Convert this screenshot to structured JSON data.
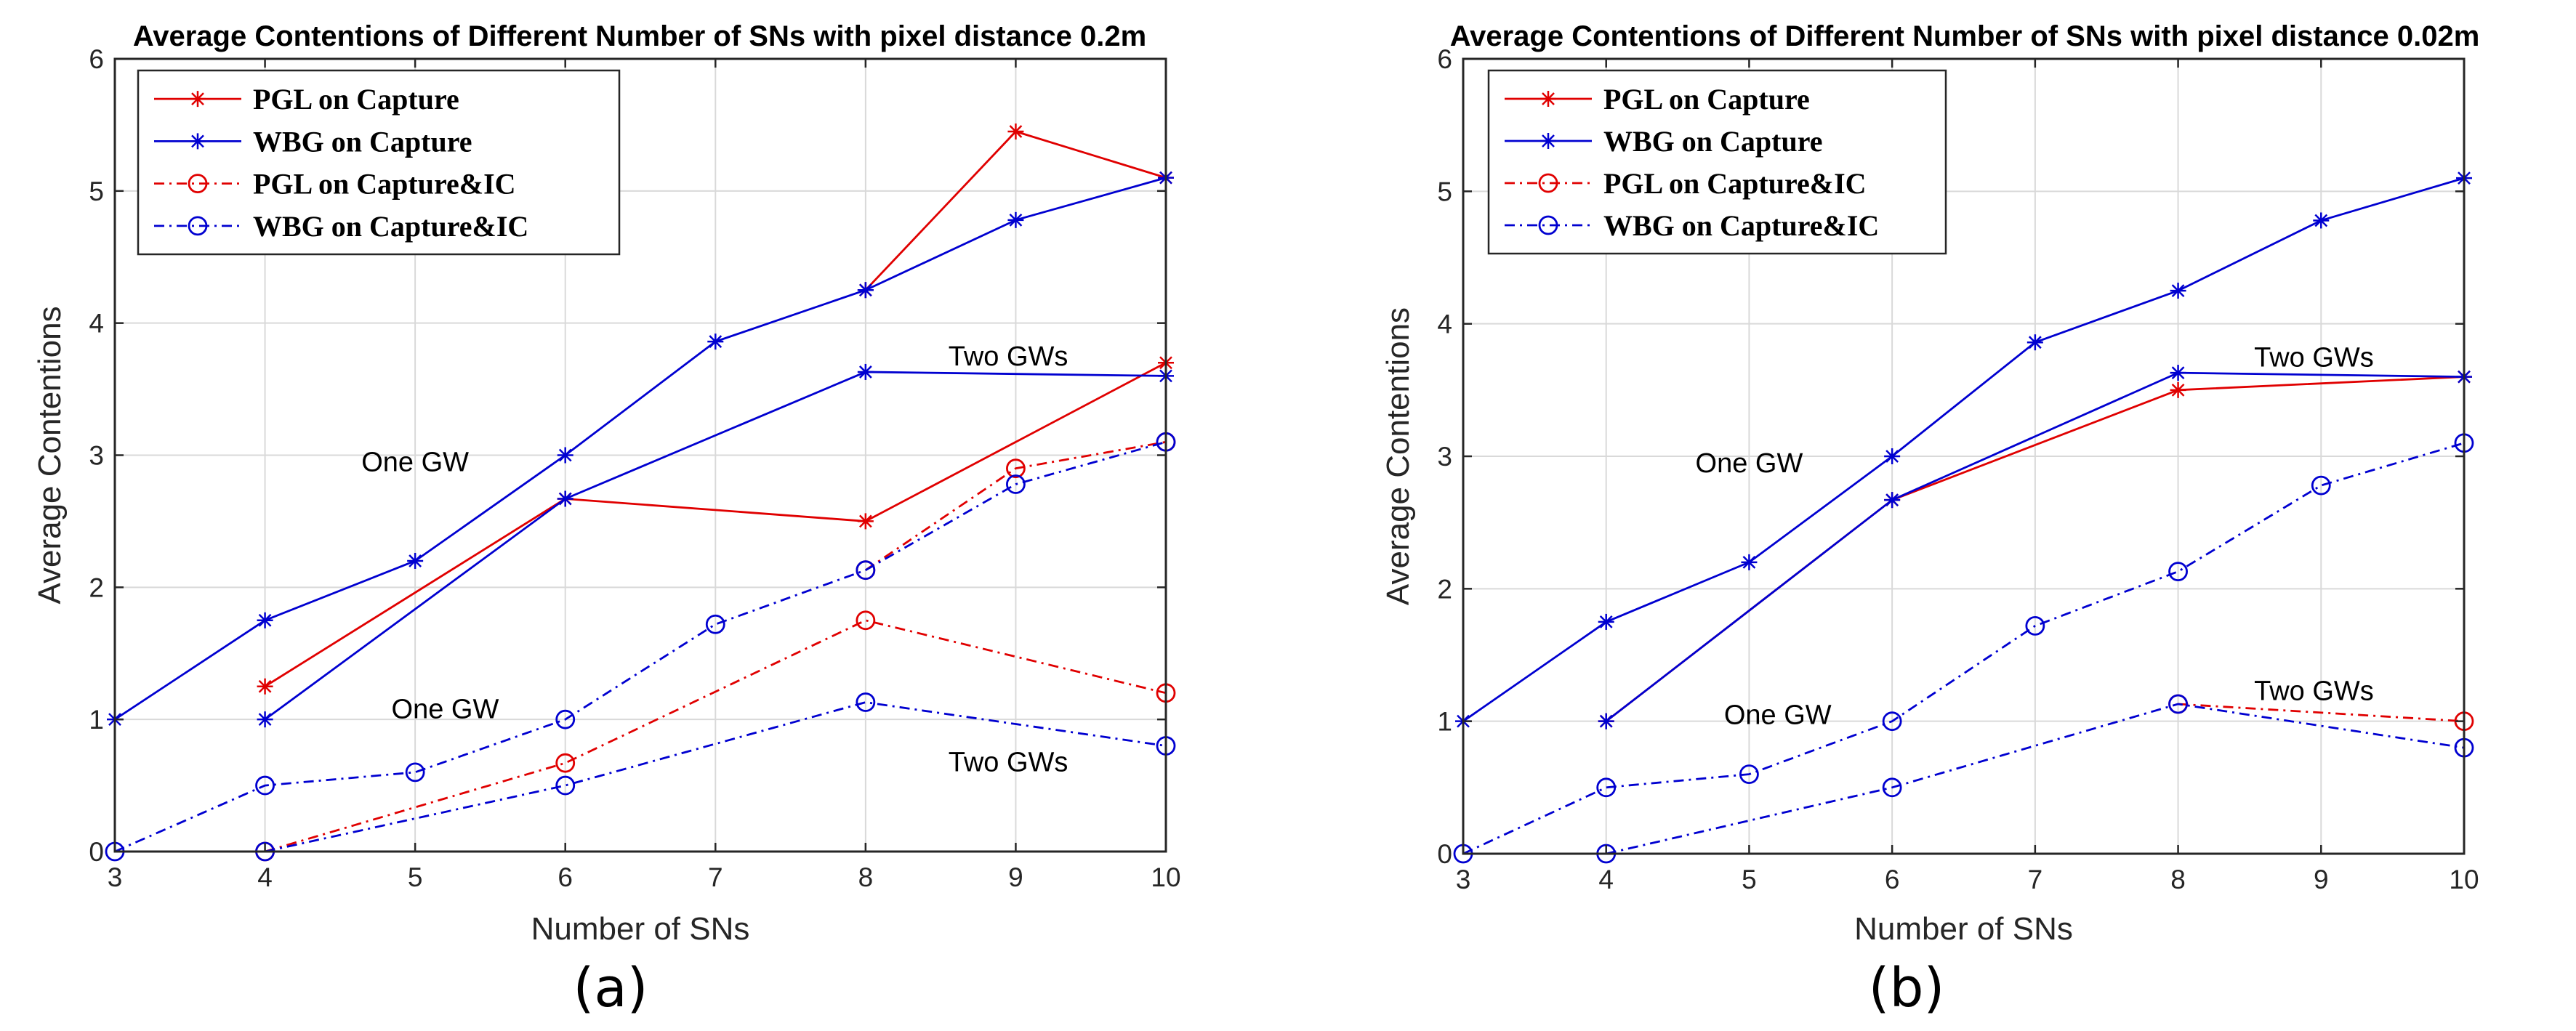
{
  "chart_data": [
    {
      "type": "line",
      "panel_label": "(a)",
      "title": "Average Contentions of Different Number of SNs with pixel distance 0.2m",
      "xlabel": "Number of SNs",
      "ylabel": "Average Contentions",
      "xlim": [
        3,
        10
      ],
      "ylim": [
        0,
        6
      ],
      "xticks": [
        3,
        4,
        5,
        6,
        7,
        8,
        9,
        10
      ],
      "yticks": [
        0,
        1,
        2,
        3,
        4,
        5,
        6
      ],
      "grid": true,
      "legend_position": "top-left",
      "legend": [
        {
          "label": "PGL on Capture",
          "color": "#e00000",
          "marker": "asterisk",
          "dash": "solid"
        },
        {
          "label": "WBG on Capture",
          "color": "#0000d0",
          "marker": "asterisk",
          "dash": "solid"
        },
        {
          "label": "PGL on Capture&IC",
          "color": "#e00000",
          "marker": "circle",
          "dash": "dashdot"
        },
        {
          "label": "WBG on Capture&IC",
          "color": "#0000d0",
          "marker": "circle",
          "dash": "dashdot"
        }
      ],
      "series": [
        {
          "name": "PGL on Capture",
          "group": "One GW",
          "color": "#e00000",
          "marker": "asterisk",
          "dash": "solid",
          "x": [
            8,
            9,
            10
          ],
          "y": [
            4.25,
            5.45,
            5.1
          ]
        },
        {
          "name": "WBG on Capture",
          "group": "One GW",
          "color": "#0000d0",
          "marker": "asterisk",
          "dash": "solid",
          "x": [
            3,
            4,
            5,
            6,
            7,
            8,
            9,
            10
          ],
          "y": [
            1.0,
            1.75,
            2.2,
            3.0,
            3.86,
            4.25,
            4.78,
            5.1
          ]
        },
        {
          "name": "PGL on Capture",
          "group": "Two GWs",
          "color": "#e00000",
          "marker": "asterisk",
          "dash": "solid",
          "x": [
            4,
            6,
            8,
            10
          ],
          "y": [
            1.25,
            2.67,
            2.5,
            3.7
          ]
        },
        {
          "name": "WBG on Capture",
          "group": "Two GWs",
          "color": "#0000d0",
          "marker": "asterisk",
          "dash": "solid",
          "x": [
            4,
            6,
            8,
            10
          ],
          "y": [
            1.0,
            2.67,
            3.63,
            3.6
          ]
        },
        {
          "name": "PGL on Capture&IC",
          "group": "One GW",
          "color": "#e00000",
          "marker": "circle",
          "dash": "dashdot",
          "x": [
            8,
            9,
            10
          ],
          "y": [
            2.13,
            2.9,
            3.1
          ]
        },
        {
          "name": "WBG on Capture&IC",
          "group": "One GW",
          "color": "#0000d0",
          "marker": "circle",
          "dash": "dashdot",
          "x": [
            3,
            4,
            5,
            6,
            7,
            8,
            9,
            10
          ],
          "y": [
            0.0,
            0.5,
            0.6,
            1.0,
            1.72,
            2.13,
            2.78,
            3.1
          ]
        },
        {
          "name": "PGL on Capture&IC",
          "group": "Two GWs",
          "color": "#e00000",
          "marker": "circle",
          "dash": "dashdot",
          "x": [
            4,
            6,
            8,
            10
          ],
          "y": [
            0.0,
            0.67,
            1.75,
            1.2
          ]
        },
        {
          "name": "WBG on Capture&IC",
          "group": "Two GWs",
          "color": "#0000d0",
          "marker": "circle",
          "dash": "dashdot",
          "x": [
            4,
            6,
            8,
            10
          ],
          "y": [
            0.0,
            0.5,
            1.13,
            0.8
          ]
        }
      ],
      "annotations": [
        {
          "text": "One GW",
          "x": 5.0,
          "y": 2.95
        },
        {
          "text": "Two GWs",
          "x": 8.95,
          "y": 3.75
        },
        {
          "text": "One GW",
          "x": 5.2,
          "y": 1.08
        },
        {
          "text": "Two GWs",
          "x": 8.95,
          "y": 0.68
        }
      ]
    },
    {
      "type": "line",
      "panel_label": "(b)",
      "title": "Average Contentions of Different Number of SNs with pixel distance 0.02m",
      "xlabel": "Number of SNs",
      "ylabel": "Average Contentions",
      "xlim": [
        3,
        10
      ],
      "ylim": [
        0,
        6
      ],
      "xticks": [
        3,
        4,
        5,
        6,
        7,
        8,
        9,
        10
      ],
      "yticks": [
        0,
        1,
        2,
        3,
        4,
        5,
        6
      ],
      "grid": true,
      "legend_position": "top-left",
      "legend": [
        {
          "label": "PGL on Capture",
          "color": "#e00000",
          "marker": "asterisk",
          "dash": "solid"
        },
        {
          "label": "WBG on Capture",
          "color": "#0000d0",
          "marker": "asterisk",
          "dash": "solid"
        },
        {
          "label": "PGL on Capture&IC",
          "color": "#e00000",
          "marker": "circle",
          "dash": "dashdot"
        },
        {
          "label": "WBG on Capture&IC",
          "color": "#0000d0",
          "marker": "circle",
          "dash": "dashdot"
        }
      ],
      "series": [
        {
          "name": "WBG on Capture",
          "group": "One GW",
          "color": "#0000d0",
          "marker": "asterisk",
          "dash": "solid",
          "x": [
            3,
            4,
            5,
            6,
            7,
            8,
            9,
            10
          ],
          "y": [
            1.0,
            1.75,
            2.2,
            3.0,
            3.86,
            4.25,
            4.78,
            5.1
          ]
        },
        {
          "name": "PGL on Capture",
          "group": "Two GWs",
          "color": "#e00000",
          "marker": "asterisk",
          "dash": "solid",
          "x": [
            4,
            6,
            8,
            10
          ],
          "y": [
            1.0,
            2.67,
            3.5,
            3.6
          ]
        },
        {
          "name": "WBG on Capture",
          "group": "Two GWs",
          "color": "#0000d0",
          "marker": "asterisk",
          "dash": "solid",
          "x": [
            4,
            6,
            8,
            10
          ],
          "y": [
            1.0,
            2.67,
            3.63,
            3.6
          ]
        },
        {
          "name": "WBG on Capture&IC",
          "group": "One GW",
          "color": "#0000d0",
          "marker": "circle",
          "dash": "dashdot",
          "x": [
            3,
            4,
            5,
            6,
            7,
            8,
            9,
            10
          ],
          "y": [
            0.0,
            0.5,
            0.6,
            1.0,
            1.72,
            2.13,
            2.78,
            3.1
          ]
        },
        {
          "name": "PGL on Capture&IC",
          "group": "Two GWs",
          "color": "#e00000",
          "marker": "circle",
          "dash": "dashdot",
          "x": [
            8,
            10
          ],
          "y": [
            1.13,
            1.0
          ]
        },
        {
          "name": "WBG on Capture&IC",
          "group": "Two GWs",
          "color": "#0000d0",
          "marker": "circle",
          "dash": "dashdot",
          "x": [
            4,
            6,
            8,
            10
          ],
          "y": [
            0.0,
            0.5,
            1.13,
            0.8
          ]
        }
      ],
      "annotations": [
        {
          "text": "One GW",
          "x": 5.0,
          "y": 2.95
        },
        {
          "text": "Two GWs",
          "x": 8.95,
          "y": 3.75
        },
        {
          "text": "One GW",
          "x": 5.2,
          "y": 1.05
        },
        {
          "text": "Two GWs",
          "x": 8.95,
          "y": 1.23
        }
      ]
    }
  ]
}
